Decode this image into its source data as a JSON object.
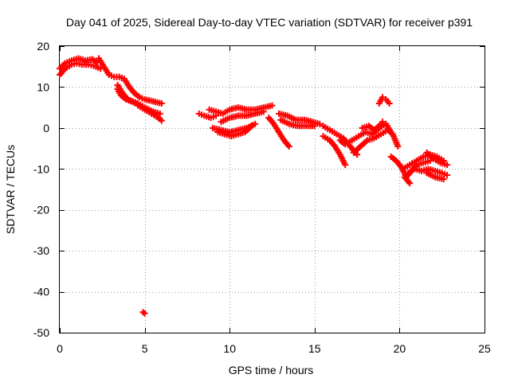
{
  "chart_data": {
    "type": "scatter",
    "title": "Day 041 of 2025, Sidereal Day-to-day VTEC variation (SDTVAR) for receiver p391",
    "xlabel": "GPS time / hours",
    "ylabel": "SDTVAR / TECUs",
    "xlim": [
      0,
      25
    ],
    "ylim": [
      -50,
      20
    ],
    "xticks": [
      0,
      5,
      10,
      15,
      20,
      25
    ],
    "yticks": [
      -50,
      -40,
      -30,
      -20,
      -10,
      0,
      10,
      20
    ],
    "x_tick_labels": [
      "0",
      "5",
      "10",
      "15",
      "20",
      "25"
    ],
    "y_tick_labels": [
      "-50",
      "-40",
      "-30",
      "-20",
      "-10",
      "0",
      "10",
      "20"
    ],
    "grid": true,
    "marker": "+",
    "series_color": "#ff0000",
    "segments": [
      {
        "x": [
          0,
          0.3,
          0.7,
          1.0,
          1.3,
          1.7,
          2.0,
          2.4
        ],
        "y": [
          13,
          14.5,
          15.5,
          15.8,
          15.5,
          15.5,
          15.2,
          14.5
        ]
      },
      {
        "x": [
          0,
          0.3,
          0.7,
          1.1,
          1.5,
          1.9,
          2.2
        ],
        "y": [
          14.5,
          15.8,
          16.5,
          17,
          16.5,
          16.8,
          16
        ]
      },
      {
        "x": [
          2.3,
          2.6,
          2.9,
          3.2,
          3.5,
          3.8
        ],
        "y": [
          17,
          15,
          13,
          12.5,
          12.5,
          12
        ]
      },
      {
        "x": [
          3.5,
          3.8,
          4.1,
          4.4,
          4.7,
          5.0,
          5.5,
          6.0
        ],
        "y": [
          12.5,
          12,
          10,
          8.5,
          7.5,
          7,
          6.5,
          6
        ]
      },
      {
        "x": [
          3.4,
          3.7,
          4.0,
          4.3,
          4.6,
          5.0,
          5.5,
          5.9
        ],
        "y": [
          10.5,
          8.5,
          7,
          6.5,
          6,
          5,
          4,
          3.5
        ]
      },
      {
        "x": [
          3.4,
          3.6,
          3.9,
          4.2,
          4.5
        ],
        "y": [
          9.5,
          8,
          7,
          6.5,
          6
        ]
      },
      {
        "x": [
          4.6,
          5.0,
          5.4,
          5.8,
          6.0
        ],
        "y": [
          5.5,
          4.5,
          3.5,
          2.5,
          1.8
        ]
      },
      {
        "x": [
          8.2,
          8.5,
          8.9,
          9.2
        ],
        "y": [
          3.5,
          3,
          2.5,
          3
        ]
      },
      {
        "x": [
          8.8,
          9.2,
          9.6,
          10.0,
          10.5,
          11.0,
          11.5,
          12.0,
          12.5
        ],
        "y": [
          4.5,
          4,
          3.5,
          4.5,
          5,
          4.5,
          4.5,
          5,
          5.5
        ]
      },
      {
        "x": [
          9.5,
          10.0,
          10.5,
          11.0,
          11.5,
          12.0
        ],
        "y": [
          1.5,
          2.5,
          3,
          3,
          3.5,
          4
        ]
      },
      {
        "x": [
          9.0,
          9.5,
          10.0,
          10.5,
          11.0,
          11.5
        ],
        "y": [
          0,
          -0.5,
          -1,
          -0.5,
          0,
          1
        ]
      },
      {
        "x": [
          9.3,
          9.7,
          10.1,
          10.5,
          10.9,
          11.3
        ],
        "y": [
          -1,
          -1.5,
          -2,
          -1.5,
          -1,
          0.5
        ]
      },
      {
        "x": [
          12.3,
          12.6,
          12.9,
          13.2,
          13.5
        ],
        "y": [
          2.5,
          1,
          -1,
          -3,
          -4.5
        ]
      },
      {
        "x": [
          12.9,
          13.4,
          13.9,
          14.4,
          14.9,
          15.3
        ],
        "y": [
          3.5,
          3,
          2,
          2,
          1.5,
          1
        ]
      },
      {
        "x": [
          13.0,
          13.5,
          14.0,
          14.5,
          15.0
        ],
        "y": [
          2,
          1,
          0.5,
          0.5,
          0.5
        ]
      },
      {
        "x": [
          15.5,
          15.9,
          16.3,
          16.7,
          17.0,
          17.3,
          17.5
        ],
        "y": [
          0.5,
          -0.5,
          -1.5,
          -2.5,
          -4,
          -5.5,
          -6.5
        ]
      },
      {
        "x": [
          15.5,
          15.9,
          16.2,
          16.5,
          16.8
        ],
        "y": [
          -2,
          -3,
          -4.5,
          -6.5,
          -9
        ]
      },
      {
        "x": [
          16.5,
          16.8,
          17.2,
          17.6,
          18.0,
          18.4,
          18.8,
          19.2,
          19.5
        ],
        "y": [
          -3,
          -4,
          -3,
          -2,
          -1,
          -1.5,
          0,
          1,
          -1
        ]
      },
      {
        "x": [
          17.3,
          17.7,
          18.1,
          18.5,
          18.9,
          19.3,
          19.6,
          19.9
        ],
        "y": [
          -6,
          -4.5,
          -3,
          -2.5,
          -1.5,
          -0.5,
          -1.5,
          -4.5
        ]
      },
      {
        "x": [
          17.8,
          18.2,
          18.5,
          18.8,
          19.0
        ],
        "y": [
          0,
          0.5,
          -0.5,
          0.5,
          1.5
        ]
      },
      {
        "x": [
          18.8,
          19.0,
          19.2,
          19.4
        ],
        "y": [
          6,
          7.5,
          7,
          6
        ]
      },
      {
        "x": [
          19.5,
          19.8,
          20.1,
          20.4,
          20.7,
          21.0,
          21.4,
          21.8
        ],
        "y": [
          -7,
          -8,
          -9.5,
          -12,
          -10.5,
          -9,
          -8.5,
          -8
        ]
      },
      {
        "x": [
          20.2,
          20.6,
          21.0,
          21.4,
          21.8,
          22.2,
          22.6
        ],
        "y": [
          -10,
          -9,
          -8,
          -7,
          -6.5,
          -7,
          -8
        ]
      },
      {
        "x": [
          20.5,
          20.9,
          21.3,
          21.7,
          22.1,
          22.5,
          22.8
        ],
        "y": [
          -11,
          -10,
          -10.5,
          -10,
          -10.5,
          -11,
          -11.5
        ]
      },
      {
        "x": [
          21.6,
          22.0,
          22.4,
          22.8
        ],
        "y": [
          -6,
          -7.5,
          -8.5,
          -9
        ]
      },
      {
        "x": [
          21.6,
          22.1,
          22.6
        ],
        "y": [
          -11,
          -12,
          -12.5
        ]
      },
      {
        "x": [
          20.3,
          20.6
        ],
        "y": [
          -12,
          -13.5
        ]
      },
      {
        "x": [
          4.9,
          5.0
        ],
        "y": [
          -45,
          -45.3
        ]
      }
    ]
  }
}
